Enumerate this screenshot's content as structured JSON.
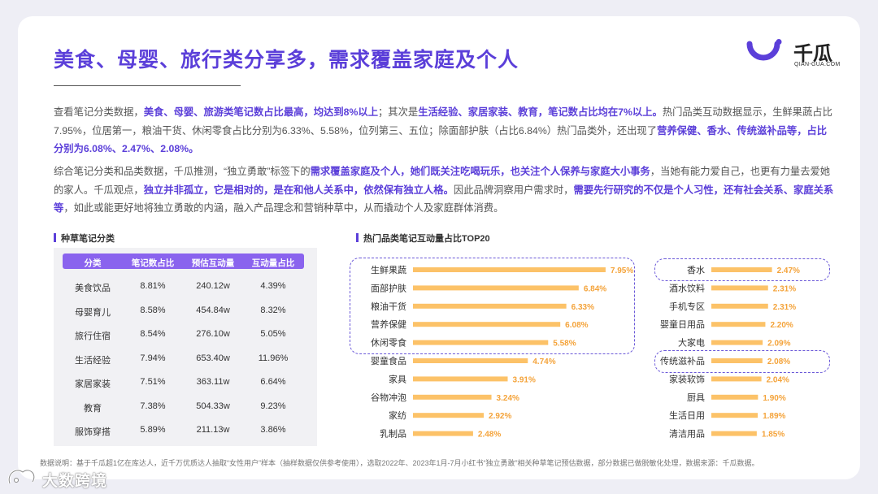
{
  "title": "美食、母婴、旅行类分享多，需求覆盖家庭及个人",
  "logo": {
    "name": "千瓜",
    "sub": "QIAN-GUA.COM",
    "brand_color": "#5b3fd9"
  },
  "paragraphs": [
    [
      {
        "t": "查看笔记分类数据，",
        "h": false
      },
      {
        "t": "美食、母婴、旅游类笔记数占比最高，均达到8%以上",
        "h": true
      },
      {
        "t": "；其次是",
        "h": false
      },
      {
        "t": "生活经验、家居家装、教育，笔记数占比均在7%以上。",
        "h": true
      },
      {
        "t": "热门品类互动数据显示，生鲜果蔬占比7.95%，位居第一，粮油干货、休闲零食占比分别为6.33%、5.58%，位列第三、五位；除面部护肤（占比6.84%）热门品类外，还出现了",
        "h": false
      },
      {
        "t": "营养保健、香水、传统滋补品等，占比分别为6.08%、2.47%、2.08%。",
        "h": true
      }
    ],
    [
      {
        "t": "综合笔记分类和品类数据，千瓜推测，“独立勇敢”标签下的",
        "h": false
      },
      {
        "t": "需求覆盖家庭及个人，她们既关注吃喝玩乐，也关注个人保养与家庭大小事务",
        "h": true
      },
      {
        "t": "，当她有能力爱自己，也更有力量去爱她的家人。千瓜观点，",
        "h": false
      },
      {
        "t": "独立并非孤立，它是相对的，是在和他人关系中，依然保有独立人格。",
        "h": true
      },
      {
        "t": "因此品牌洞察用户需求时，",
        "h": false
      },
      {
        "t": "需要先行研究的不仅是个人习性，还有社会关系、家庭关系等",
        "h": true
      },
      {
        "t": "，如此或能更好地将独立勇敢的内涵，融入产品理念和营销种草中，从而撬动个人及家庭群体消费。",
        "h": false
      }
    ]
  ],
  "table": {
    "title": "种草笔记分类",
    "headers": [
      "分类",
      "笔记数占比",
      "预估互动量",
      "互动量占比"
    ],
    "rows": [
      [
        "美食饮品",
        "8.81%",
        "240.12w",
        "4.39%"
      ],
      [
        "母婴育儿",
        "8.58%",
        "454.84w",
        "8.32%"
      ],
      [
        "旅行住宿",
        "8.54%",
        "276.10w",
        "5.05%"
      ],
      [
        "生活经验",
        "7.94%",
        "653.40w",
        "11.96%"
      ],
      [
        "家居家装",
        "7.51%",
        "363.11w",
        "6.64%"
      ],
      [
        "教育",
        "7.38%",
        "504.33w",
        "9.23%"
      ],
      [
        "服饰穿搭",
        "5.89%",
        "211.13w",
        "3.86%"
      ]
    ]
  },
  "chart_data": {
    "type": "bar",
    "title": "热门品类笔记互动量占比TOP20",
    "orientation": "horizontal",
    "unit": "%",
    "bar_color": "#fcc268",
    "label_color": "#f4a33a",
    "highlight_border_color": "#6a58d8",
    "columns": [
      {
        "categories": [
          "生鲜果蔬",
          "面部护肤",
          "粮油干货",
          "营养保健",
          "休闲零食",
          "婴童食品",
          "家具",
          "谷物冲泡",
          "家纺",
          "乳制品"
        ],
        "values": [
          7.95,
          6.84,
          6.33,
          6.08,
          5.58,
          4.74,
          3.91,
          3.24,
          2.92,
          2.48
        ],
        "labels": [
          "7.95%",
          "6.84%",
          "6.33%",
          "6.08%",
          "5.58%",
          "4.74%",
          "3.91%",
          "3.24%",
          "2.92%",
          "2.48%"
        ]
      },
      {
        "categories": [
          "香水",
          "酒水饮料",
          "手机专区",
          "婴童日用品",
          "大家电",
          "传统滋补品",
          "家装软饰",
          "厨具",
          "生活日用",
          "清洁用品"
        ],
        "values": [
          2.47,
          2.31,
          2.31,
          2.2,
          2.09,
          2.08,
          2.04,
          1.9,
          1.89,
          1.85
        ],
        "labels": [
          "2.47%",
          "2.31%",
          "2.31%",
          "2.20%",
          "2.09%",
          "2.08%",
          "2.04%",
          "1.90%",
          "1.89%",
          "1.85%"
        ]
      }
    ]
  },
  "footnote": "数据说明：基于千瓜超1亿在库达人，近千万优质达人抽取“女性用户”样本（抽样数据仅供参考使用），选取2022年、2023年1月-7月小红书“独立勇敢”相关种草笔记预估数据，部分数据已做脱敏化处理，数据来源：千瓜数据。",
  "watermark": "大数跨境"
}
